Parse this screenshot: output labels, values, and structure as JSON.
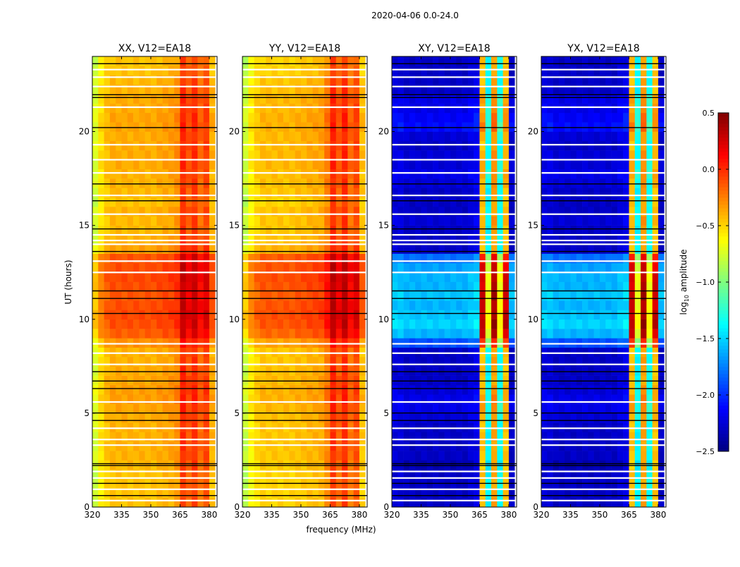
{
  "chart_data": {
    "type": "heatmap",
    "title": "2020-04-06 0.0-24.0",
    "xlabel": "frequency (MHz)",
    "ylabel": "UT (hours)",
    "xlim": [
      320,
      384
    ],
    "ylim": [
      0,
      24
    ],
    "xticks": [
      "320",
      "335",
      "350",
      "365",
      "380"
    ],
    "yticks": [
      "0",
      "5",
      "10",
      "15",
      "20"
    ],
    "channels_mhz": [
      320,
      323,
      326,
      329,
      332,
      335,
      338,
      341,
      344,
      347,
      350,
      353,
      356,
      359,
      362,
      365,
      368,
      371,
      374,
      377,
      380
    ],
    "channel_width_mhz": 3,
    "row_hours": 0.5,
    "colorbar": {
      "label": "log10 amplitude",
      "range": [
        -2.5,
        0.5
      ],
      "ticks": [
        "0.5",
        "0.0",
        "−0.5",
        "−1.0",
        "−1.5",
        "−2.0",
        "−2.5"
      ],
      "colormap": "jet"
    },
    "panels": [
      {
        "title": "XX, V12=EA18",
        "base": [
          -0.45,
          -0.45,
          -0.45,
          -0.45,
          -0.42,
          -0.4,
          -0.4,
          -0.4,
          -0.4,
          -0.38,
          -0.36,
          -0.34,
          -0.34,
          -0.36,
          -0.38,
          -0.4,
          -0.4,
          -0.3,
          -0.15,
          -0.1,
          -0.08,
          -0.1,
          -0.12,
          -0.1,
          -0.08,
          -0.1,
          -0.12,
          -0.35,
          -0.4,
          -0.42,
          -0.42,
          -0.4,
          -0.45,
          -0.42,
          -0.4,
          -0.4,
          -0.38,
          -0.38,
          -0.38,
          -0.38,
          -0.36,
          -0.36,
          -0.38,
          -0.38,
          -0.4,
          -0.42,
          -0.45,
          -0.45
        ],
        "channel_profile": [
          -0.35,
          -0.15,
          -0.05,
          0,
          0,
          0,
          0,
          0,
          0,
          0,
          0,
          0.02,
          0.04,
          0.05,
          0.1,
          0.4,
          0.28,
          0.38,
          0.22,
          0.32,
          0.0
        ]
      },
      {
        "title": "YY, V12=EA18",
        "base": [
          -0.5,
          -0.5,
          -0.5,
          -0.5,
          -0.48,
          -0.46,
          -0.46,
          -0.46,
          -0.46,
          -0.44,
          -0.42,
          -0.4,
          -0.4,
          -0.42,
          -0.44,
          -0.46,
          -0.46,
          -0.35,
          -0.18,
          -0.12,
          -0.1,
          -0.12,
          -0.14,
          -0.12,
          -0.1,
          -0.12,
          -0.14,
          -0.4,
          -0.45,
          -0.46,
          -0.46,
          -0.45,
          -0.5,
          -0.46,
          -0.44,
          -0.44,
          -0.42,
          -0.42,
          -0.42,
          -0.42,
          -0.4,
          -0.4,
          -0.42,
          -0.42,
          -0.44,
          -0.46,
          -0.5,
          -0.5
        ],
        "channel_profile": [
          -0.35,
          -0.15,
          -0.05,
          0,
          0,
          0,
          0,
          0,
          0,
          0.02,
          0.03,
          0.05,
          0.06,
          0.08,
          0.2,
          0.45,
          0.3,
          0.45,
          0.25,
          0.35,
          0.0
        ]
      },
      {
        "title": "XY, V12=EA18",
        "base": [
          -2.3,
          -2.3,
          -2.3,
          -2.3,
          -2.35,
          -2.3,
          -2.3,
          -2.3,
          -2.3,
          -2.25,
          -2.2,
          -2.2,
          -2.25,
          -2.3,
          -2.3,
          -2.3,
          -2.3,
          -1.9,
          -1.6,
          -1.5,
          -1.55,
          -1.6,
          -1.55,
          -1.6,
          -1.6,
          -1.65,
          -1.8,
          -2.3,
          -2.3,
          -2.3,
          -2.25,
          -2.3,
          -2.3,
          -2.3,
          -2.25,
          -2.2,
          -2.25,
          -2.25,
          -2.3,
          -2.25,
          -2.1,
          -2.15,
          -2.2,
          -2.2,
          -2.3,
          -2.3,
          -2.3,
          -2.3
        ],
        "channel_profile": [
          0.05,
          0.05,
          0,
          0,
          0,
          0,
          0,
          0,
          0,
          0,
          0,
          0,
          0,
          0.05,
          0.1,
          1.85,
          0.9,
          1.95,
          0.95,
          1.85,
          0.0
        ]
      },
      {
        "title": "YX, V12=EA18",
        "base": [
          -2.3,
          -2.3,
          -2.3,
          -2.3,
          -2.35,
          -2.3,
          -2.3,
          -2.3,
          -2.3,
          -2.25,
          -2.2,
          -2.2,
          -2.25,
          -2.3,
          -2.3,
          -2.3,
          -2.3,
          -1.9,
          -1.6,
          -1.5,
          -1.55,
          -1.6,
          -1.55,
          -1.6,
          -1.6,
          -1.65,
          -1.8,
          -2.3,
          -2.3,
          -2.3,
          -2.25,
          -2.3,
          -2.3,
          -2.3,
          -2.25,
          -2.2,
          -2.25,
          -2.25,
          -2.3,
          -2.25,
          -2.1,
          -2.15,
          -2.2,
          -2.2,
          -2.3,
          -2.3,
          -2.3,
          -2.3
        ],
        "channel_profile": [
          0.05,
          0.05,
          0,
          0,
          0,
          0,
          0,
          0,
          0,
          0,
          0,
          0,
          0,
          0.05,
          0.1,
          1.85,
          0.9,
          1.95,
          0.95,
          1.85,
          0.0
        ]
      }
    ],
    "flagged_rows": [
      {
        "t": 0.35,
        "color": "white"
      },
      {
        "t": 0.6,
        "color": "black"
      },
      {
        "t": 0.95,
        "color": "white"
      },
      {
        "t": 1.25,
        "color": "black"
      },
      {
        "t": 1.55,
        "color": "white"
      },
      {
        "t": 1.9,
        "color": "white"
      },
      {
        "t": 2.2,
        "color": "black"
      },
      {
        "t": 2.3,
        "color": "black"
      },
      {
        "t": 3.3,
        "color": "white"
      },
      {
        "t": 3.6,
        "color": "white"
      },
      {
        "t": 4.2,
        "color": "white"
      },
      {
        "t": 4.6,
        "color": "black"
      },
      {
        "t": 5.0,
        "color": "black"
      },
      {
        "t": 5.6,
        "color": "white"
      },
      {
        "t": 6.3,
        "color": "black"
      },
      {
        "t": 6.7,
        "color": "black"
      },
      {
        "t": 7.2,
        "color": "black"
      },
      {
        "t": 7.6,
        "color": "white"
      },
      {
        "t": 8.2,
        "color": "white"
      },
      {
        "t": 8.7,
        "color": "white"
      },
      {
        "t": 10.3,
        "color": "black"
      },
      {
        "t": 11.1,
        "color": "black"
      },
      {
        "t": 11.5,
        "color": "black"
      },
      {
        "t": 12.5,
        "color": "white"
      },
      {
        "t": 13.1,
        "color": "white"
      },
      {
        "t": 13.6,
        "color": "black"
      },
      {
        "t": 14.0,
        "color": "white"
      },
      {
        "t": 14.2,
        "color": "white"
      },
      {
        "t": 14.5,
        "color": "white"
      },
      {
        "t": 14.8,
        "color": "black"
      },
      {
        "t": 15.6,
        "color": "white"
      },
      {
        "t": 16.3,
        "color": "black"
      },
      {
        "t": 16.6,
        "color": "white"
      },
      {
        "t": 17.2,
        "color": "black"
      },
      {
        "t": 17.8,
        "color": "white"
      },
      {
        "t": 18.5,
        "color": "white"
      },
      {
        "t": 19.3,
        "color": "white"
      },
      {
        "t": 20.2,
        "color": "black"
      },
      {
        "t": 21.3,
        "color": "white"
      },
      {
        "t": 21.8,
        "color": "black"
      },
      {
        "t": 21.95,
        "color": "black"
      },
      {
        "t": 22.4,
        "color": "white"
      },
      {
        "t": 22.9,
        "color": "white"
      },
      {
        "t": 23.3,
        "color": "white"
      },
      {
        "t": 23.6,
        "color": "black"
      }
    ]
  }
}
